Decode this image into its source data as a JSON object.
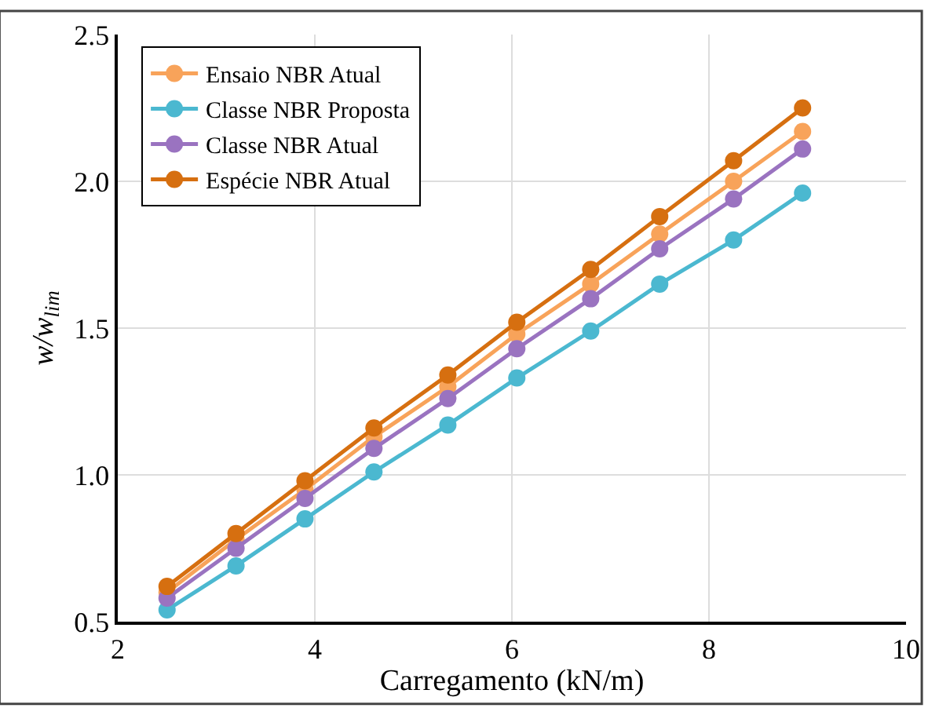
{
  "chart_data": {
    "type": "line",
    "xlabel": "Carregamento (kN/m)",
    "ylabel": "w/w$_{lim}$",
    "x": [
      2.5,
      3.2,
      3.9,
      4.6,
      5.35,
      6.05,
      6.8,
      7.5,
      8.25,
      8.95
    ],
    "series": [
      {
        "name": "Ensaio NBR Atual",
        "color": "#f8a35a",
        "values": [
          0.6,
          0.78,
          0.95,
          1.13,
          1.3,
          1.48,
          1.65,
          1.82,
          2.0,
          2.17
        ]
      },
      {
        "name": "Classe NBR Proposta",
        "color": "#4bb8d0",
        "values": [
          0.54,
          0.69,
          0.85,
          1.01,
          1.17,
          1.33,
          1.49,
          1.65,
          1.8,
          1.96
        ]
      },
      {
        "name": "Classe NBR Atual",
        "color": "#9a73c0",
        "values": [
          0.58,
          0.75,
          0.92,
          1.09,
          1.26,
          1.43,
          1.6,
          1.77,
          1.94,
          2.11
        ]
      },
      {
        "name": "Espécie NBR Atual",
        "color": "#d66f10",
        "values": [
          0.62,
          0.8,
          0.98,
          1.16,
          1.34,
          1.52,
          1.7,
          1.88,
          2.07,
          2.25
        ]
      }
    ],
    "xlim": [
      2,
      10
    ],
    "xticks": [
      2,
      4,
      6,
      8,
      10
    ],
    "ylim": [
      0.5,
      2.5
    ],
    "yticks": [
      {
        "value": 0.5,
        "label": "0.5"
      },
      {
        "value": 1.0,
        "label": "1.0"
      },
      {
        "value": 1.5,
        "label": "1.5"
      },
      {
        "value": 2.0,
        "label": "2.0"
      },
      {
        "value": 2.5,
        "label": "2.5"
      }
    ],
    "grid": true,
    "legend": "top left",
    "marker": "circle",
    "line_style": "solid"
  }
}
